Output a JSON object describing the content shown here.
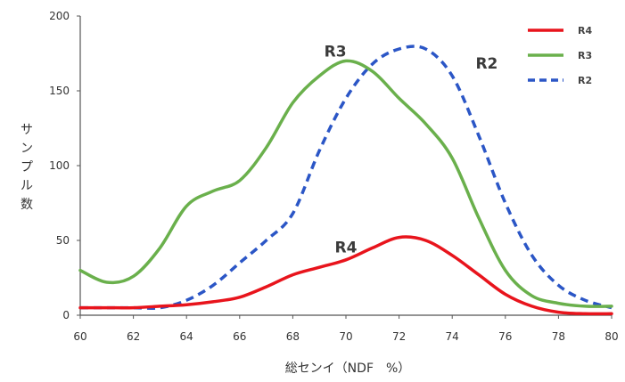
{
  "chart_data": {
    "type": "line",
    "xlabel": "総センイ（NDF　%）",
    "ylabel": "サンプル数",
    "xlim": [
      60,
      80
    ],
    "ylim": [
      0,
      200
    ],
    "x_ticks": [
      60,
      62,
      64,
      66,
      68,
      70,
      72,
      74,
      76,
      78,
      80
    ],
    "y_ticks": [
      0,
      50,
      100,
      150,
      200
    ],
    "y_tick_labels": [
      "0",
      "50",
      "100",
      "150",
      "200"
    ],
    "grid": false,
    "legend_position": "top-right",
    "series": [
      {
        "name": "R4",
        "color": "#e8141c",
        "style": "solid",
        "label_at": [
          70,
          42
        ],
        "points": [
          [
            60,
            5
          ],
          [
            61,
            5
          ],
          [
            62,
            5
          ],
          [
            63,
            6
          ],
          [
            64,
            7
          ],
          [
            65,
            9
          ],
          [
            66,
            12
          ],
          [
            67,
            19
          ],
          [
            68,
            27
          ],
          [
            69,
            32
          ],
          [
            70,
            37
          ],
          [
            71,
            45
          ],
          [
            72,
            52
          ],
          [
            73,
            50
          ],
          [
            74,
            40
          ],
          [
            75,
            27
          ],
          [
            76,
            14
          ],
          [
            77,
            6
          ],
          [
            78,
            2
          ],
          [
            79,
            1
          ],
          [
            80,
            1
          ]
        ]
      },
      {
        "name": "R3",
        "color": "#6ab04c",
        "style": "solid",
        "label_at": [
          69.6,
          173
        ],
        "points": [
          [
            60,
            30
          ],
          [
            61,
            22
          ],
          [
            62,
            26
          ],
          [
            63,
            45
          ],
          [
            64,
            73
          ],
          [
            65,
            83
          ],
          [
            66,
            90
          ],
          [
            67,
            112
          ],
          [
            68,
            142
          ],
          [
            69,
            160
          ],
          [
            70,
            170
          ],
          [
            71,
            163
          ],
          [
            72,
            145
          ],
          [
            73,
            128
          ],
          [
            74,
            105
          ],
          [
            75,
            65
          ],
          [
            76,
            30
          ],
          [
            77,
            13
          ],
          [
            78,
            8
          ],
          [
            79,
            6
          ],
          [
            80,
            6
          ]
        ]
      },
      {
        "name": "R2",
        "color": "#2b56c6",
        "style": "dashed",
        "label_at": [
          75.3,
          165
        ],
        "points": [
          [
            60,
            5
          ],
          [
            61,
            5
          ],
          [
            62,
            5
          ],
          [
            63,
            5
          ],
          [
            64,
            10
          ],
          [
            65,
            20
          ],
          [
            66,
            35
          ],
          [
            67,
            50
          ],
          [
            68,
            68
          ],
          [
            69,
            110
          ],
          [
            70,
            145
          ],
          [
            71,
            168
          ],
          [
            72,
            178
          ],
          [
            73,
            178
          ],
          [
            74,
            160
          ],
          [
            75,
            120
          ],
          [
            76,
            75
          ],
          [
            77,
            40
          ],
          [
            78,
            20
          ],
          [
            79,
            10
          ],
          [
            80,
            5
          ]
        ]
      }
    ]
  }
}
